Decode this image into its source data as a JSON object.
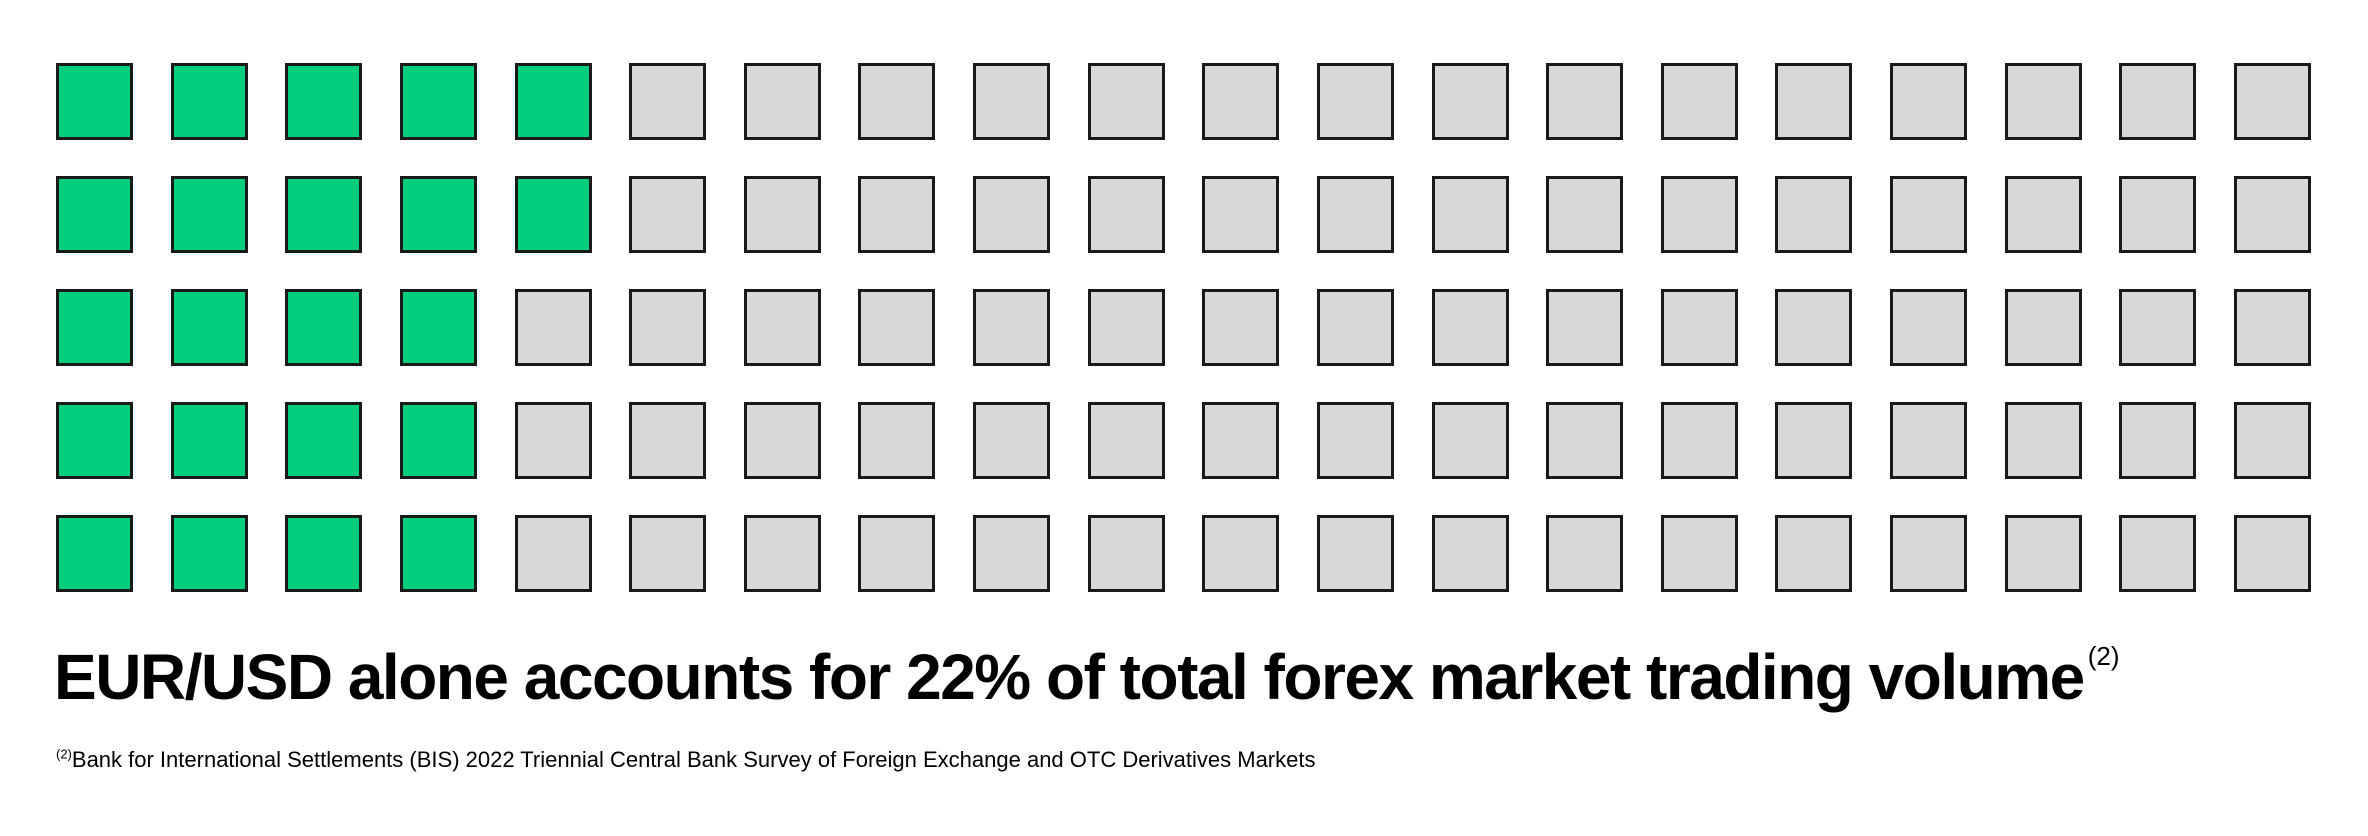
{
  "chart_data": {
    "type": "waffle",
    "title": "EUR/USD alone accounts for 22% of total forex market trading volume",
    "title_superscript": "(2)",
    "rows": 5,
    "columns": 20,
    "total_cells": 100,
    "filled_cells": 22,
    "value_percent": 22,
    "filled_per_row": [
      5,
      5,
      4,
      4,
      4
    ],
    "grid_on": false,
    "legend_position": "none",
    "colors": {
      "filled": "#00CE7C",
      "empty": "#D8D8D8",
      "cell_border": "#1A1A1A",
      "background": "#FFFFFF",
      "text": "#000000"
    }
  },
  "footnote": {
    "marker": "(2)",
    "text": "Bank for International Settlements (BIS) 2022 Triennial Central Bank Survey of Foreign Exchange and OTC Derivatives Markets"
  }
}
